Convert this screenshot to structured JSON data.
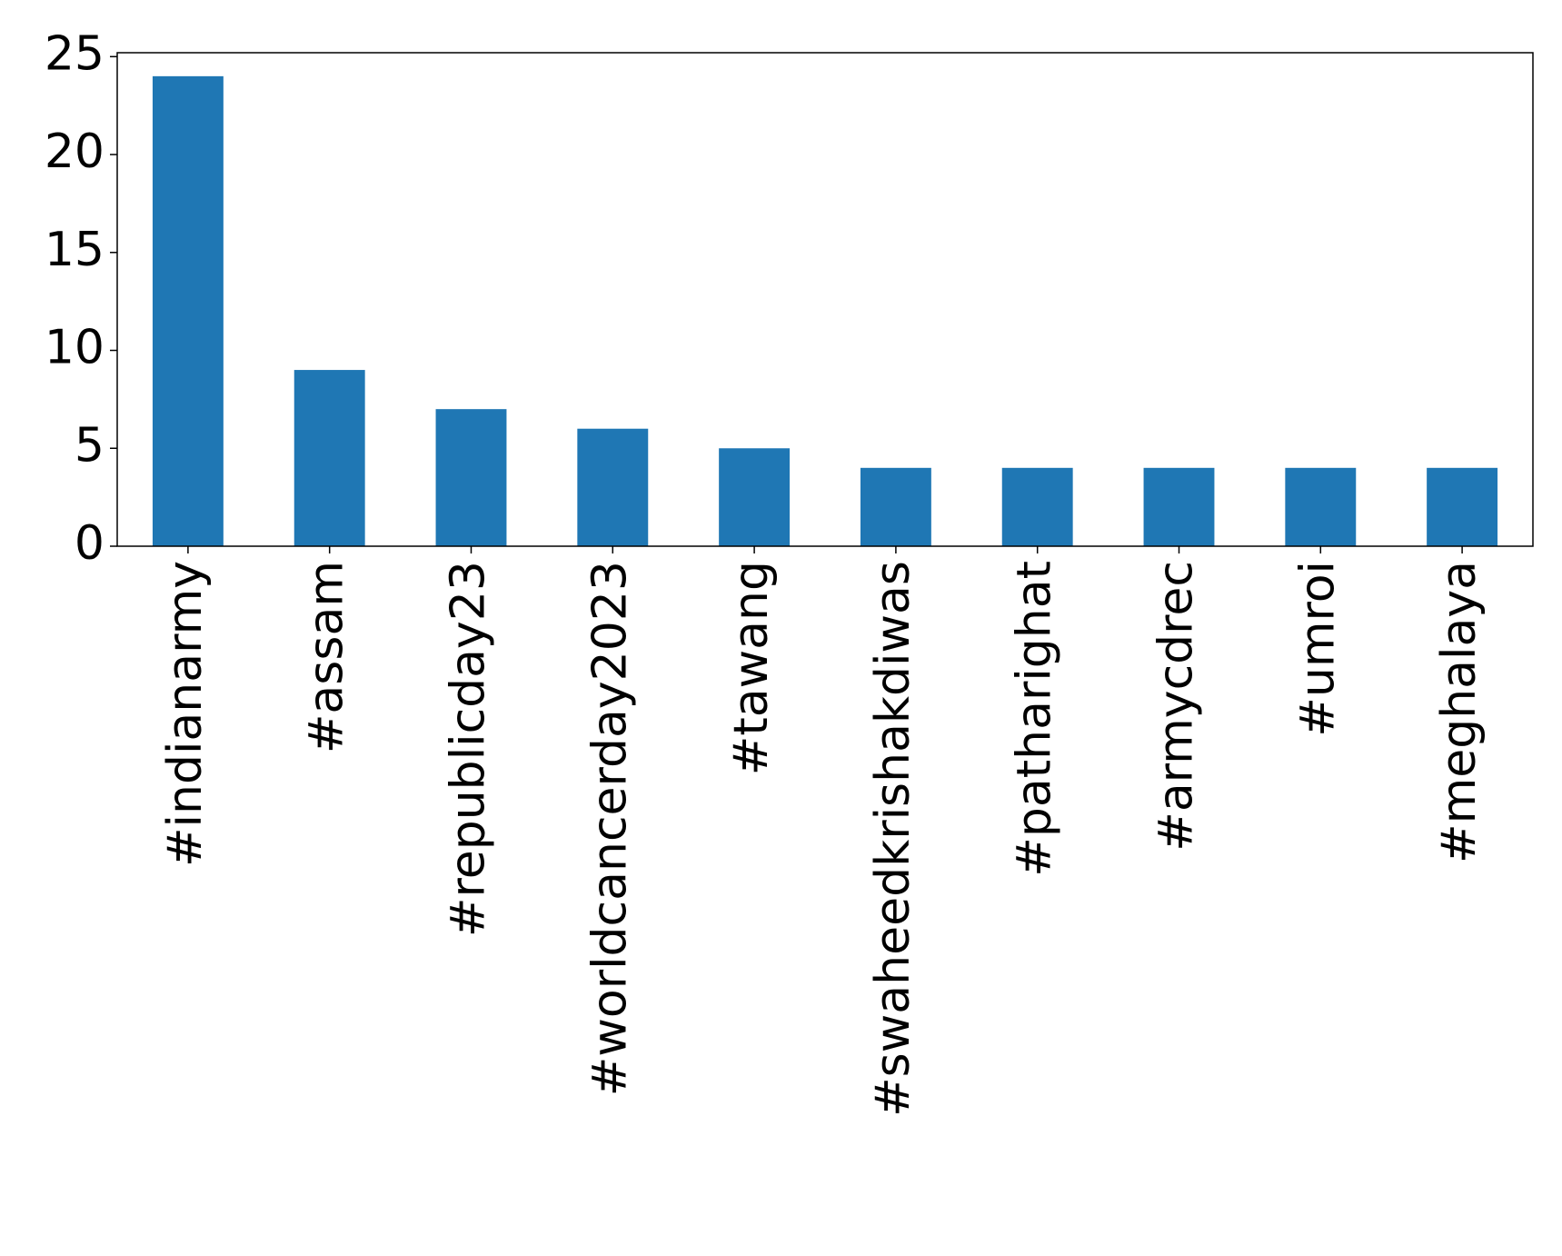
{
  "chart_data": {
    "type": "bar",
    "categories": [
      "#indianarmy",
      "#assam",
      "#republicday23",
      "#worldcancerday2023",
      "#tawang",
      "#swaheedkrishakdiwas",
      "#patharighat",
      "#armycdrec",
      "#umroi",
      "#meghalaya"
    ],
    "values": [
      24,
      9,
      7,
      6,
      5,
      4,
      4,
      4,
      4,
      4
    ],
    "color": "#1f77b4",
    "ylim": [
      0,
      25.2
    ],
    "yticks": [
      0,
      5,
      10,
      15,
      20,
      25
    ],
    "grid": false
  }
}
